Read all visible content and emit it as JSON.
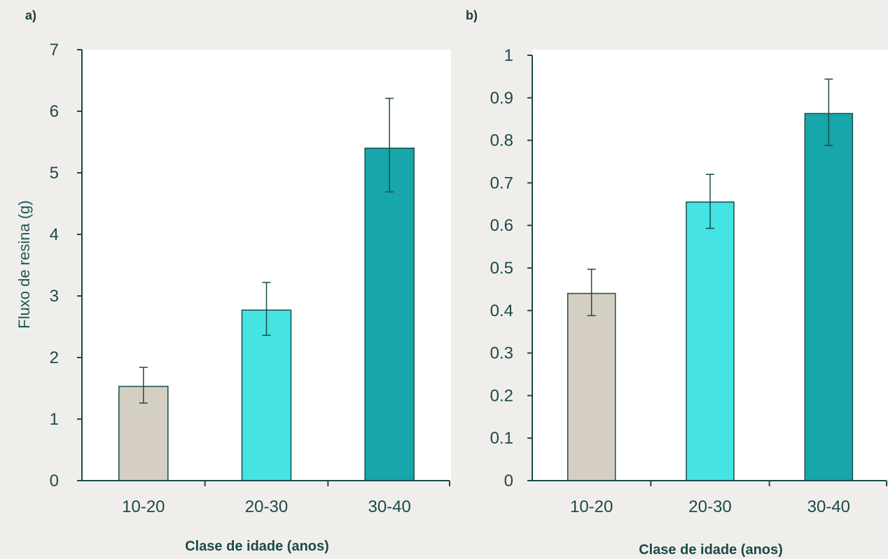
{
  "colors": {
    "background": "#f0eeeb",
    "plot_bg": "#ffffff",
    "axis": "#1a4a4a",
    "bar_outline": "#1a4a4a",
    "bars": [
      "#d4cec3",
      "#45e3e3",
      "#17a6aa"
    ]
  },
  "chart_data": [
    {
      "panel": "a)",
      "type": "bar",
      "categories": [
        "10-20",
        "20-30",
        "30-40"
      ],
      "values": [
        1.53,
        2.77,
        5.4
      ],
      "error_low": [
        1.26,
        2.36,
        4.69
      ],
      "error_high": [
        1.84,
        3.22,
        6.21
      ],
      "yticks": [
        "0",
        "1",
        "2",
        "3",
        "4",
        "5",
        "6",
        "7"
      ],
      "ylim": [
        0,
        7
      ],
      "xlabel": "Clase de idade (anos)",
      "ylabel": "Fluxo de resina (g)",
      "grid": false
    },
    {
      "panel": "b)",
      "type": "bar",
      "categories": [
        "10-20",
        "20-30",
        "30-40"
      ],
      "values": [
        0.44,
        0.655,
        0.863
      ],
      "error_low": [
        0.388,
        0.593,
        0.788
      ],
      "error_high": [
        0.497,
        0.72,
        0.944
      ],
      "yticks": [
        "0",
        "0.1",
        "0.2",
        "0.3",
        "0.4",
        "0.5",
        "0.6",
        "0.7",
        "0.8",
        "0.9",
        "1"
      ],
      "ylim": [
        0,
        1
      ],
      "xlabel": "Clase de idade (anos)",
      "ylabel": "",
      "grid": false
    }
  ]
}
